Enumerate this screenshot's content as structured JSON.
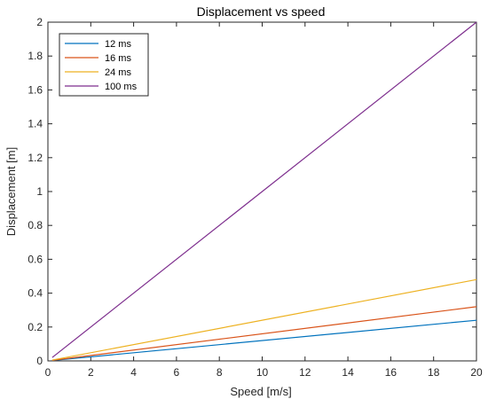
{
  "chart_data": {
    "type": "line",
    "title": "Displacement vs speed",
    "xlabel": "Speed [m/s]",
    "ylabel": "Displacement [m]",
    "xlim": [
      0,
      20
    ],
    "ylim": [
      0,
      2
    ],
    "xticks": [
      0,
      2,
      4,
      6,
      8,
      10,
      12,
      14,
      16,
      18,
      20
    ],
    "yticks": [
      0,
      0.2,
      0.4,
      0.6,
      0.8,
      1,
      1.2,
      1.4,
      1.6,
      1.8,
      2
    ],
    "grid": false,
    "legend_position": "top-left",
    "series": [
      {
        "name": "12 ms",
        "color": "#0072BD",
        "x": [
          0.2,
          20
        ],
        "y": [
          0.0024,
          0.24
        ]
      },
      {
        "name": "16 ms",
        "color": "#D95319",
        "x": [
          0.2,
          20
        ],
        "y": [
          0.0032,
          0.32
        ]
      },
      {
        "name": "24 ms",
        "color": "#EDB120",
        "x": [
          0.2,
          20
        ],
        "y": [
          0.0048,
          0.48
        ]
      },
      {
        "name": "100 ms",
        "color": "#7E2F8E",
        "x": [
          0.2,
          20
        ],
        "y": [
          0.02,
          2.0
        ]
      }
    ]
  }
}
